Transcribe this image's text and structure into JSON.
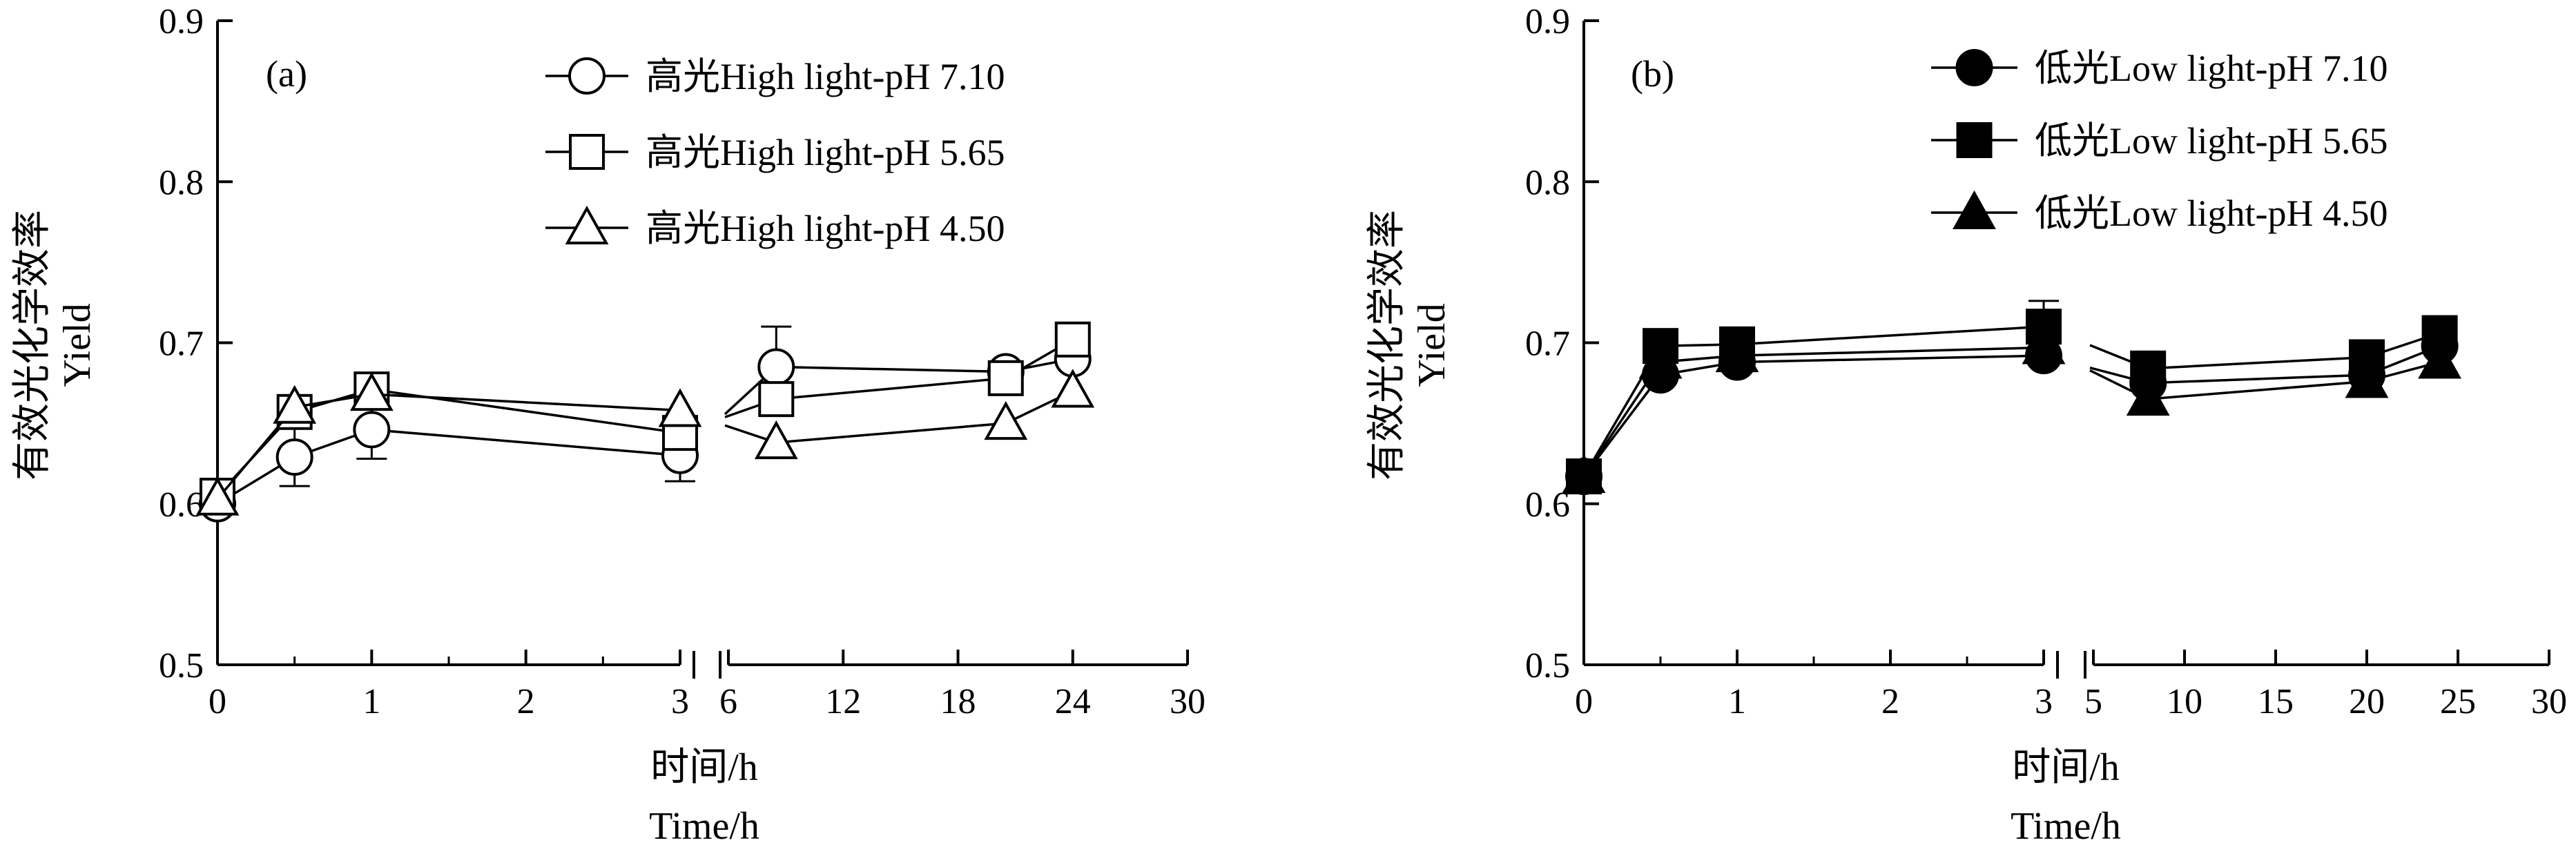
{
  "chart_data": [
    {
      "panel": "(a)",
      "type": "line",
      "ylabel": [
        "有效光化学效率",
        "Yield"
      ],
      "xlabel": [
        "时间/h",
        "Time/h"
      ],
      "ylim": [
        0.5,
        0.9
      ],
      "yticks": [
        "0.5",
        "0.6",
        "0.7",
        "0.8",
        "0.9"
      ],
      "broken_x_axis": true,
      "x_segments": [
        {
          "range": [
            0,
            3
          ],
          "ticks": [
            "0",
            "1",
            "2",
            "3"
          ]
        },
        {
          "range": [
            6,
            30
          ],
          "ticks": [
            "6",
            "12",
            "18",
            "24",
            "30"
          ]
        }
      ],
      "legend_position": "top-right",
      "series": [
        {
          "name": "高光High light-pH 7.10",
          "marker": "circle-open",
          "points": [
            [
              0,
              0.6,
              0
            ],
            [
              0.5,
              0.629,
              0.018
            ],
            [
              1,
              0.646,
              0.018
            ],
            [
              3,
              0.63,
              0.016
            ],
            [
              8.5,
              0.685,
              0.025
            ],
            [
              20.5,
              0.682,
              0
            ],
            [
              24,
              0.69,
              0
            ]
          ]
        },
        {
          "name": "高光High light-pH 5.65",
          "marker": "square-open",
          "points": [
            [
              0,
              0.605,
              0
            ],
            [
              0.5,
              0.657,
              0
            ],
            [
              1,
              0.671,
              0
            ],
            [
              3,
              0.644,
              0
            ],
            [
              8.5,
              0.665,
              0
            ],
            [
              20.5,
              0.678,
              0
            ],
            [
              24,
              0.702,
              0
            ]
          ]
        },
        {
          "name": "高光High light-pH 4.50",
          "marker": "triangle-open",
          "points": [
            [
              0,
              0.603,
              0
            ],
            [
              0.5,
              0.66,
              0
            ],
            [
              1,
              0.668,
              0
            ],
            [
              3,
              0.658,
              0
            ],
            [
              8.5,
              0.638,
              0
            ],
            [
              20.5,
              0.65,
              0
            ],
            [
              24,
              0.67,
              0
            ]
          ]
        }
      ]
    },
    {
      "panel": "(b)",
      "type": "line",
      "ylabel": [
        "有效光化学效率",
        "Yield"
      ],
      "xlabel": [
        "时间/h",
        "Time/h"
      ],
      "ylim": [
        0.5,
        0.9
      ],
      "yticks": [
        "0.5",
        "0.6",
        "0.7",
        "0.8",
        "0.9"
      ],
      "broken_x_axis": true,
      "x_segments": [
        {
          "range": [
            0,
            3
          ],
          "ticks": [
            "0",
            "1",
            "2",
            "3"
          ]
        },
        {
          "range": [
            5,
            30
          ],
          "ticks": [
            "5",
            "10",
            "15",
            "20",
            "25",
            "30"
          ]
        }
      ],
      "legend_position": "top-right",
      "series": [
        {
          "name": "低光Low light-pH 7.10",
          "marker": "circle-filled",
          "points": [
            [
              0,
              0.617,
              0
            ],
            [
              0.5,
              0.68,
              0
            ],
            [
              1,
              0.688,
              0
            ],
            [
              3,
              0.692,
              0
            ],
            [
              8,
              0.675,
              0
            ],
            [
              20,
              0.68,
              0
            ],
            [
              24,
              0.698,
              0
            ]
          ]
        },
        {
          "name": "低光Low light-pH 5.65",
          "marker": "square-filled",
          "points": [
            [
              0,
              0.617,
              0
            ],
            [
              0.5,
              0.698,
              0
            ],
            [
              1,
              0.699,
              0
            ],
            [
              3,
              0.71,
              0.016
            ],
            [
              8,
              0.684,
              0
            ],
            [
              20,
              0.691,
              0
            ],
            [
              24,
              0.706,
              0
            ]
          ]
        },
        {
          "name": "低光Low light-pH 4.50",
          "marker": "triangle-filled",
          "points": [
            [
              0,
              0.617,
              0
            ],
            [
              0.5,
              0.688,
              0
            ],
            [
              1,
              0.692,
              0
            ],
            [
              3,
              0.697,
              0
            ],
            [
              8,
              0.665,
              0
            ],
            [
              20,
              0.676,
              0
            ],
            [
              24,
              0.688,
              0
            ]
          ]
        }
      ]
    }
  ]
}
